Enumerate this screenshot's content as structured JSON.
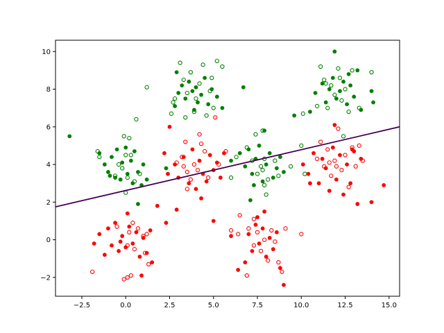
{
  "chart_data": {
    "type": "scatter",
    "title": "",
    "xlabel": "",
    "ylabel": "",
    "xlim": [
      -4.0,
      15.6
    ],
    "ylim": [
      -3.0,
      10.6
    ],
    "grid": false,
    "x_ticks": [
      -2.5,
      0.0,
      2.5,
      5.0,
      7.5,
      10.0,
      12.5,
      15.0
    ],
    "x_tick_labels": [
      "−2.5",
      "0.0",
      "2.5",
      "5.0",
      "7.5",
      "10.0",
      "12.5",
      "15.0"
    ],
    "y_ticks": [
      -2,
      0,
      2,
      4,
      6,
      8,
      10
    ],
    "y_tick_labels": [
      "−2",
      "0",
      "2",
      "4",
      "6",
      "8",
      "10"
    ],
    "colors": {
      "green": "#008000",
      "red": "#ff0000",
      "boundary": "#440154",
      "axes": "#000000"
    },
    "decision_boundary": {
      "x": [
        -4.0,
        15.6
      ],
      "y": [
        1.75,
        6.0
      ]
    },
    "series": [
      {
        "color": "green",
        "filled": true,
        "points": [
          [
            -3.2,
            5.5
          ],
          [
            -1.5,
            4.6
          ],
          [
            -1.2,
            4.0
          ],
          [
            -1.0,
            3.6
          ],
          [
            -0.8,
            4.4
          ],
          [
            -0.6,
            3.3
          ],
          [
            -0.5,
            4.8
          ],
          [
            -0.3,
            3.2
          ],
          [
            -0.2,
            4.1
          ],
          [
            0.0,
            4.9
          ],
          [
            0.1,
            3.5
          ],
          [
            0.3,
            4.2
          ],
          [
            0.4,
            3.0
          ],
          [
            0.5,
            4.7
          ],
          [
            0.7,
            3.6
          ],
          [
            0.9,
            2.9
          ],
          [
            1.0,
            4.0
          ],
          [
            1.2,
            3.2
          ],
          [
            0.7,
            1.9
          ],
          [
            -0.9,
            3.4
          ],
          [
            2.3,
            3.8
          ],
          [
            2.8,
            7.1
          ],
          [
            3.0,
            7.8
          ],
          [
            3.2,
            8.2
          ],
          [
            3.4,
            7.5
          ],
          [
            3.6,
            8.4
          ],
          [
            3.8,
            7.9
          ],
          [
            4.0,
            8.1
          ],
          [
            4.1,
            7.3
          ],
          [
            4.3,
            7.7
          ],
          [
            4.5,
            8.6
          ],
          [
            4.7,
            7.2
          ],
          [
            4.9,
            8.0
          ],
          [
            5.2,
            7.6
          ],
          [
            5.5,
            7.0
          ],
          [
            2.9,
            8.9
          ],
          [
            3.9,
            6.9
          ],
          [
            6.7,
            8.1
          ],
          [
            6.0,
            4.2
          ],
          [
            6.5,
            4.6
          ],
          [
            6.8,
            3.9
          ],
          [
            7.0,
            4.8
          ],
          [
            7.2,
            3.5
          ],
          [
            7.4,
            4.3
          ],
          [
            7.6,
            5.0
          ],
          [
            7.8,
            3.1
          ],
          [
            8.0,
            4.0
          ],
          [
            8.2,
            4.6
          ],
          [
            8.4,
            3.3
          ],
          [
            8.6,
            3.8
          ],
          [
            8.8,
            4.4
          ],
          [
            9.0,
            3.6
          ],
          [
            7.1,
            2.1
          ],
          [
            7.3,
            2.9
          ],
          [
            7.9,
            5.8
          ],
          [
            9.6,
            6.6
          ],
          [
            10.5,
            6.8
          ],
          [
            10.8,
            7.8
          ],
          [
            11.2,
            8.3
          ],
          [
            11.4,
            7.3
          ],
          [
            11.6,
            8.0
          ],
          [
            11.8,
            8.6
          ],
          [
            12.0,
            7.5
          ],
          [
            12.2,
            7.9
          ],
          [
            12.4,
            8.4
          ],
          [
            12.6,
            7.2
          ],
          [
            12.8,
            8.2
          ],
          [
            13.0,
            7.6
          ],
          [
            13.2,
            9.0
          ],
          [
            13.4,
            6.9
          ],
          [
            11.9,
            10.0
          ],
          [
            14.0,
            7.9
          ],
          [
            14.1,
            7.3
          ],
          [
            12.7,
            8.8
          ]
        ]
      },
      {
        "color": "green",
        "filled": false,
        "points": [
          [
            -1.6,
            4.7
          ],
          [
            -1.5,
            4.4
          ],
          [
            -0.6,
            3.4
          ],
          [
            -0.4,
            4.0
          ],
          [
            -0.2,
            3.8
          ],
          [
            -0.1,
            5.5
          ],
          [
            0.0,
            4.5
          ],
          [
            0.1,
            3.3
          ],
          [
            0.2,
            5.4
          ],
          [
            0.3,
            4.5
          ],
          [
            0.5,
            3.1
          ],
          [
            0.6,
            6.4
          ],
          [
            0.8,
            3.5
          ],
          [
            1.2,
            8.1
          ],
          [
            0.0,
            2.5
          ],
          [
            2.6,
            6.7
          ],
          [
            2.8,
            7.5
          ],
          [
            3.1,
            9.4
          ],
          [
            3.3,
            8.5
          ],
          [
            3.5,
            7.8
          ],
          [
            3.7,
            8.9
          ],
          [
            3.9,
            6.8
          ],
          [
            4.0,
            7.5
          ],
          [
            4.2,
            8.3
          ],
          [
            4.4,
            9.3
          ],
          [
            4.6,
            6.6
          ],
          [
            4.8,
            7.9
          ],
          [
            5.0,
            7.0
          ],
          [
            5.2,
            9.5
          ],
          [
            5.5,
            9.2
          ],
          [
            3.4,
            6.5
          ],
          [
            4.9,
            8.6
          ],
          [
            2.7,
            7.3
          ],
          [
            7.8,
            5.8
          ],
          [
            7.4,
            5.6
          ],
          [
            6.3,
            4.4
          ],
          [
            6.9,
            4.9
          ],
          [
            7.2,
            4.2
          ],
          [
            7.5,
            3.5
          ],
          [
            7.7,
            3.9
          ],
          [
            7.9,
            4.3
          ],
          [
            8.1,
            3.2
          ],
          [
            8.5,
            4.2
          ],
          [
            7.8,
            3.7
          ],
          [
            7.9,
            2.9
          ],
          [
            8.7,
            3.4
          ],
          [
            9.4,
            3.9
          ],
          [
            6.0,
            3.3
          ],
          [
            8.0,
            2.4
          ],
          [
            10.0,
            5.0
          ],
          [
            10.2,
            3.5
          ],
          [
            10.1,
            6.7
          ],
          [
            10.9,
            7.1
          ],
          [
            11.1,
            9.2
          ],
          [
            11.3,
            8.5
          ],
          [
            11.5,
            7.0
          ],
          [
            11.7,
            8.2
          ],
          [
            11.9,
            7.7
          ],
          [
            12.1,
            9.1
          ],
          [
            12.3,
            7.4
          ],
          [
            12.5,
            8.0
          ],
          [
            12.7,
            6.8
          ],
          [
            12.9,
            9.0
          ],
          [
            13.3,
            7.0
          ],
          [
            14.0,
            8.9
          ],
          [
            12.4,
            5.5
          ],
          [
            12.2,
            8.6
          ],
          [
            11.4,
            8.3
          ]
        ]
      },
      {
        "color": "red",
        "filled": true,
        "points": [
          [
            -1.8,
            -0.2
          ],
          [
            -1.5,
            0.3
          ],
          [
            -1.2,
            -0.8
          ],
          [
            -1.0,
            0.6
          ],
          [
            -0.8,
            -0.3
          ],
          [
            -0.6,
            0.9
          ],
          [
            -0.4,
            -0.6
          ],
          [
            -0.2,
            0.2
          ],
          [
            0.0,
            -0.4
          ],
          [
            0.2,
            0.7
          ],
          [
            0.4,
            -0.2
          ],
          [
            0.6,
            0.4
          ],
          [
            0.8,
            -0.9
          ],
          [
            1.0,
            0.1
          ],
          [
            1.2,
            -0.7
          ],
          [
            1.4,
            0.5
          ],
          [
            0.9,
            -1.9
          ],
          [
            -0.3,
            -0.1
          ],
          [
            0.1,
            1.4
          ],
          [
            1.5,
            -1.2
          ],
          [
            1.8,
            1.8
          ],
          [
            2.3,
            0.9
          ],
          [
            2.2,
            4.6
          ],
          [
            2.4,
            3.5
          ],
          [
            2.8,
            4.0
          ],
          [
            3.0,
            3.3
          ],
          [
            3.3,
            4.4
          ],
          [
            3.6,
            3.0
          ],
          [
            3.8,
            4.8
          ],
          [
            4.0,
            2.7
          ],
          [
            4.2,
            4.2
          ],
          [
            4.4,
            3.5
          ],
          [
            4.6,
            3.1
          ],
          [
            4.8,
            4.5
          ],
          [
            5.0,
            3.7
          ],
          [
            5.2,
            4.1
          ],
          [
            5.4,
            3.3
          ],
          [
            5.6,
            4.6
          ],
          [
            4.3,
            2.2
          ],
          [
            2.9,
            1.6
          ],
          [
            5.0,
            1.0
          ],
          [
            2.5,
            6.0
          ],
          [
            6.0,
            0.2
          ],
          [
            6.4,
            -1.6
          ],
          [
            6.8,
            -1.2
          ],
          [
            7.0,
            0.3
          ],
          [
            7.2,
            -0.6
          ],
          [
            7.4,
            0.8
          ],
          [
            7.6,
            -0.2
          ],
          [
            7.8,
            0.6
          ],
          [
            8.0,
            -0.9
          ],
          [
            8.2,
            0.1
          ],
          [
            8.4,
            -0.5
          ],
          [
            8.6,
            0.4
          ],
          [
            8.8,
            -1.5
          ],
          [
            9.0,
            -2.4
          ],
          [
            7.5,
            1.2
          ],
          [
            7.9,
            1.5
          ],
          [
            10.1,
            4.0
          ],
          [
            10.4,
            3.5
          ],
          [
            10.7,
            4.6
          ],
          [
            11.0,
            3.0
          ],
          [
            11.2,
            4.3
          ],
          [
            11.4,
            3.8
          ],
          [
            11.6,
            2.6
          ],
          [
            11.8,
            4.9
          ],
          [
            12.0,
            3.2
          ],
          [
            12.2,
            4.5
          ],
          [
            12.4,
            2.4
          ],
          [
            12.6,
            4.0
          ],
          [
            12.8,
            3.0
          ],
          [
            13.0,
            4.7
          ],
          [
            13.2,
            1.9
          ],
          [
            13.4,
            4.3
          ],
          [
            14.0,
            2.0
          ],
          [
            14.7,
            2.9
          ],
          [
            10.5,
            3.0
          ],
          [
            11.9,
            6.1
          ],
          [
            12.9,
            4.8
          ]
        ]
      },
      {
        "color": "red",
        "filled": false,
        "points": [
          [
            -1.9,
            -1.7
          ],
          [
            -0.5,
            0.7
          ],
          [
            -0.1,
            -2.1
          ],
          [
            0.1,
            -0.3
          ],
          [
            0.2,
            0.4
          ],
          [
            0.3,
            -1.9
          ],
          [
            0.4,
            0.9
          ],
          [
            0.5,
            -0.5
          ],
          [
            0.7,
            0.6
          ],
          [
            1.0,
            0.2
          ],
          [
            1.1,
            -0.7
          ],
          [
            1.3,
            -1.3
          ],
          [
            1.2,
            0.3
          ],
          [
            0.1,
            -2.0
          ],
          [
            2.9,
            4.1
          ],
          [
            3.2,
            4.4
          ],
          [
            3.4,
            5.2
          ],
          [
            3.5,
            3.6
          ],
          [
            3.7,
            3.2
          ],
          [
            3.9,
            4.0
          ],
          [
            4.1,
            3.7
          ],
          [
            4.3,
            5.1
          ],
          [
            4.5,
            4.7
          ],
          [
            4.7,
            3.3
          ],
          [
            5.1,
            6.5
          ],
          [
            5.3,
            4.0
          ],
          [
            5.7,
            4.7
          ],
          [
            4.2,
            5.6
          ],
          [
            3.3,
            3.9
          ],
          [
            3.5,
            2.7
          ],
          [
            6.0,
            0.5
          ],
          [
            6.5,
            1.3
          ],
          [
            6.9,
            -1.9
          ],
          [
            7.0,
            0.6
          ],
          [
            7.3,
            -0.3
          ],
          [
            7.5,
            0.4
          ],
          [
            7.7,
            -0.6
          ],
          [
            7.9,
            0.0
          ],
          [
            8.1,
            -1.1
          ],
          [
            8.3,
            0.5
          ],
          [
            8.5,
            -0.1
          ],
          [
            8.9,
            -1.7
          ],
          [
            9.1,
            0.6
          ],
          [
            10.0,
            0.3
          ],
          [
            8.7,
            -1.2
          ],
          [
            6.4,
            0.3
          ],
          [
            7.3,
            1.1
          ],
          [
            10.9,
            4.3
          ],
          [
            11.1,
            5.2
          ],
          [
            11.3,
            3.9
          ],
          [
            11.5,
            4.8
          ],
          [
            11.7,
            3.4
          ],
          [
            11.9,
            4.2
          ],
          [
            12.1,
            5.9
          ],
          [
            12.3,
            3.7
          ],
          [
            12.5,
            4.5
          ],
          [
            12.7,
            2.8
          ],
          [
            12.9,
            4.9
          ],
          [
            13.1,
            3.9
          ],
          [
            13.3,
            5.0
          ],
          [
            13.5,
            4.2
          ],
          [
            11.6,
            4.1
          ],
          [
            12.0,
            3.9
          ]
        ]
      }
    ]
  }
}
